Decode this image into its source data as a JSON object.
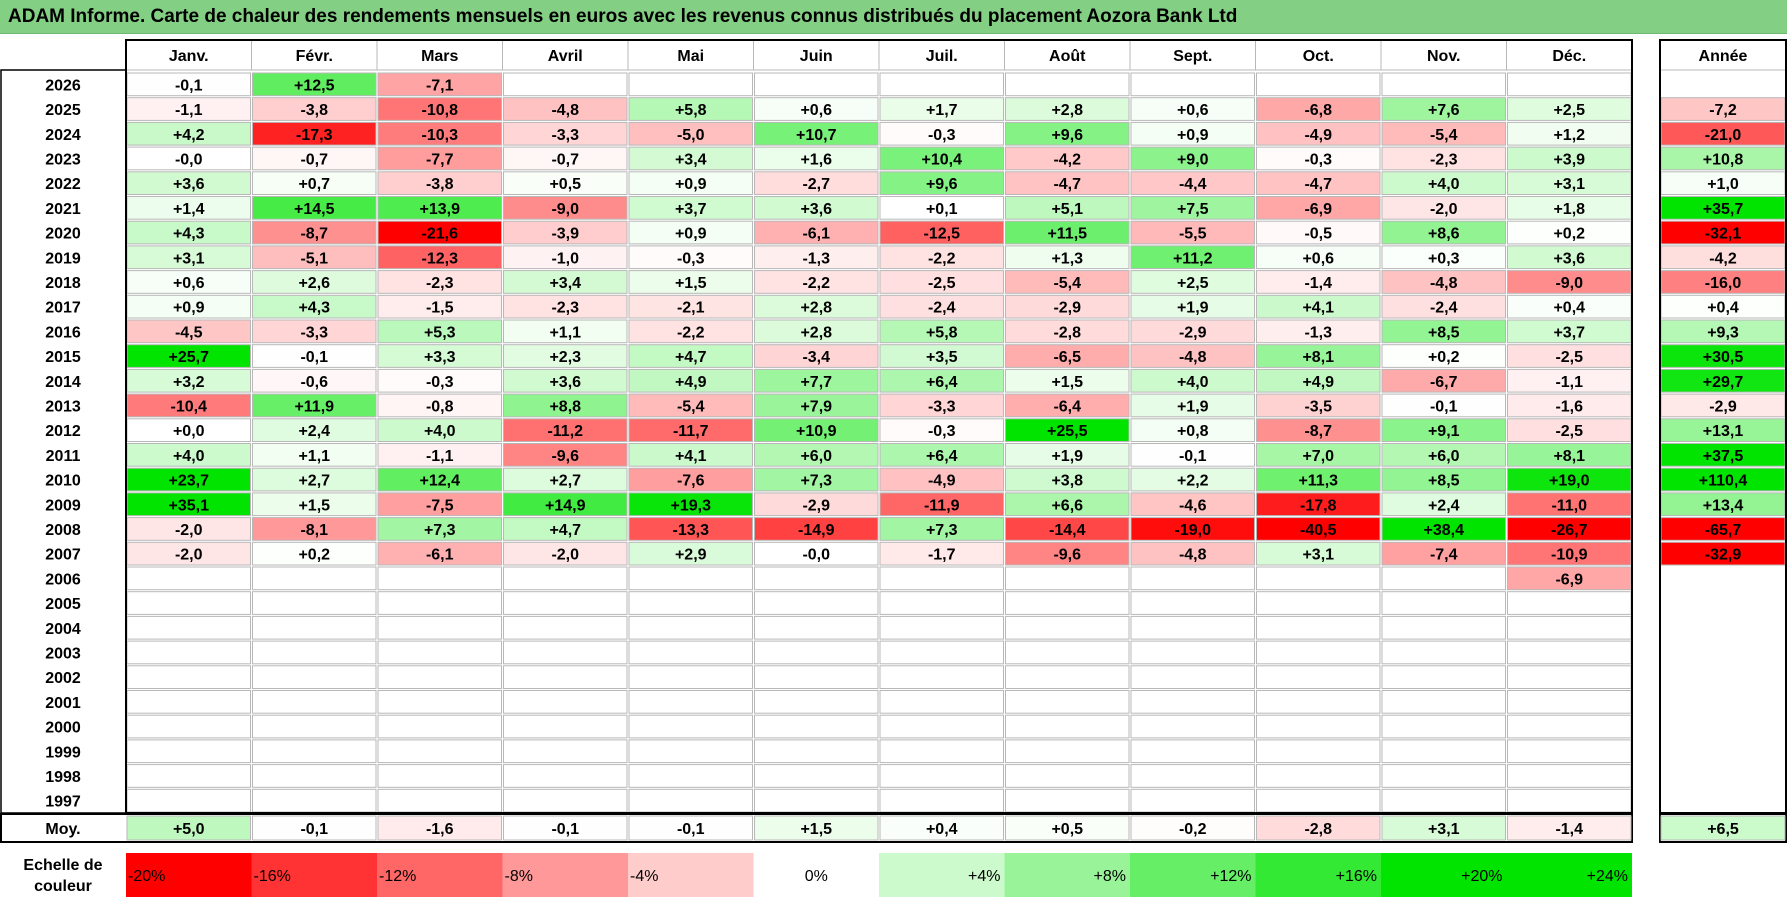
{
  "title": "ADAM Informe. Carte de chaleur des rendements mensuels en euros avec les revenus connus distribués du placement Aozora Bank Ltd",
  "chart_data": {
    "type": "heatmap",
    "months": [
      "Janv.",
      "Févr.",
      "Mars",
      "Avril",
      "Mai",
      "Juin",
      "Juil.",
      "Août",
      "Sept.",
      "Oct.",
      "Nov.",
      "Déc."
    ],
    "year_header": "Année",
    "rows": [
      {
        "year": "2026",
        "values": [
          "-0,1",
          "+12,5",
          "-7,1",
          "",
          "",
          "",
          "",
          "",
          "",
          "",
          "",
          ""
        ],
        "annual": ""
      },
      {
        "year": "2025",
        "values": [
          "-1,1",
          "-3,8",
          "-10,8",
          "-4,8",
          "+5,8",
          "+0,6",
          "+1,7",
          "+2,8",
          "+0,6",
          "-6,8",
          "+7,6",
          "+2,5"
        ],
        "annual": "-7,2"
      },
      {
        "year": "2024",
        "values": [
          "+4,2",
          "-17,3",
          "-10,3",
          "-3,3",
          "-5,0",
          "+10,7",
          "-0,3",
          "+9,6",
          "+0,9",
          "-4,9",
          "-5,4",
          "+1,2"
        ],
        "annual": "-21,0"
      },
      {
        "year": "2023",
        "values": [
          "-0,0",
          "-0,7",
          "-7,7",
          "-0,7",
          "+3,4",
          "+1,6",
          "+10,4",
          "-4,2",
          "+9,0",
          "-0,3",
          "-2,3",
          "+3,9"
        ],
        "annual": "+10,8"
      },
      {
        "year": "2022",
        "values": [
          "+3,6",
          "+0,7",
          "-3,8",
          "+0,5",
          "+0,9",
          "-2,7",
          "+9,6",
          "-4,7",
          "-4,4",
          "-4,7",
          "+4,0",
          "+3,1"
        ],
        "annual": "+1,0"
      },
      {
        "year": "2021",
        "values": [
          "+1,4",
          "+14,5",
          "+13,9",
          "-9,0",
          "+3,7",
          "+3,6",
          "+0,1",
          "+5,1",
          "+7,5",
          "-6,9",
          "-2,0",
          "+1,8"
        ],
        "annual": "+35,7"
      },
      {
        "year": "2020",
        "values": [
          "+4,3",
          "-8,7",
          "-21,6",
          "-3,9",
          "+0,9",
          "-6,1",
          "-12,5",
          "+11,5",
          "-5,5",
          "-0,5",
          "+8,6",
          "+0,2"
        ],
        "annual": "-32,1"
      },
      {
        "year": "2019",
        "values": [
          "+3,1",
          "-5,1",
          "-12,3",
          "-1,0",
          "-0,3",
          "-1,3",
          "-2,2",
          "+1,3",
          "+11,2",
          "+0,6",
          "+0,3",
          "+3,6"
        ],
        "annual": "-4,2"
      },
      {
        "year": "2018",
        "values": [
          "+0,6",
          "+2,6",
          "-2,3",
          "+3,4",
          "+1,5",
          "-2,2",
          "-2,5",
          "-5,4",
          "+2,5",
          "-1,4",
          "-4,8",
          "-9,0"
        ],
        "annual": "-16,0"
      },
      {
        "year": "2017",
        "values": [
          "+0,9",
          "+4,3",
          "-1,5",
          "-2,3",
          "-2,1",
          "+2,8",
          "-2,4",
          "-2,9",
          "+1,9",
          "+4,1",
          "-2,4",
          "+0,4"
        ],
        "annual": "+0,4"
      },
      {
        "year": "2016",
        "values": [
          "-4,5",
          "-3,3",
          "+5,3",
          "+1,1",
          "-2,2",
          "+2,8",
          "+5,8",
          "-2,8",
          "-2,9",
          "-1,3",
          "+8,5",
          "+3,7"
        ],
        "annual": "+9,3"
      },
      {
        "year": "2015",
        "values": [
          "+25,7",
          "-0,1",
          "+3,3",
          "+2,3",
          "+4,7",
          "-3,4",
          "+3,5",
          "-6,5",
          "-4,8",
          "+8,1",
          "+0,2",
          "-2,5"
        ],
        "annual": "+30,5"
      },
      {
        "year": "2014",
        "values": [
          "+3,2",
          "-0,6",
          "-0,3",
          "+3,6",
          "+4,9",
          "+7,7",
          "+6,4",
          "+1,5",
          "+4,0",
          "+4,9",
          "-6,7",
          "-1,1"
        ],
        "annual": "+29,7"
      },
      {
        "year": "2013",
        "values": [
          "-10,4",
          "+11,9",
          "-0,8",
          "+8,8",
          "-5,4",
          "+7,9",
          "-3,3",
          "-6,4",
          "+1,9",
          "-3,5",
          "-0,1",
          "-1,6"
        ],
        "annual": "-2,9"
      },
      {
        "year": "2012",
        "values": [
          "+0,0",
          "+2,4",
          "+4,0",
          "-11,2",
          "-11,7",
          "+10,9",
          "-0,3",
          "+25,5",
          "+0,8",
          "-8,7",
          "+9,1",
          "-2,5"
        ],
        "annual": "+13,1"
      },
      {
        "year": "2011",
        "values": [
          "+4,0",
          "+1,1",
          "-1,1",
          "-9,6",
          "+4,1",
          "+6,0",
          "+6,4",
          "+1,9",
          "-0,1",
          "+7,0",
          "+6,0",
          "+8,1"
        ],
        "annual": "+37,5"
      },
      {
        "year": "2010",
        "values": [
          "+23,7",
          "+2,7",
          "+12,4",
          "+2,7",
          "-7,6",
          "+7,3",
          "-4,9",
          "+3,8",
          "+2,2",
          "+11,3",
          "+8,5",
          "+19,0"
        ],
        "annual": "+110,4"
      },
      {
        "year": "2009",
        "values": [
          "+35,1",
          "+1,5",
          "-7,5",
          "+14,9",
          "+19,3",
          "-2,9",
          "-11,9",
          "+6,6",
          "-4,6",
          "-17,8",
          "+2,4",
          "-11,0"
        ],
        "annual": "+13,4"
      },
      {
        "year": "2008",
        "values": [
          "-2,0",
          "-8,1",
          "+7,3",
          "+4,7",
          "-13,3",
          "-14,9",
          "+7,3",
          "-14,4",
          "-19,0",
          "-40,5",
          "+38,4",
          "-26,7"
        ],
        "annual": "-65,7"
      },
      {
        "year": "2007",
        "values": [
          "-2,0",
          "+0,2",
          "-6,1",
          "-2,0",
          "+2,9",
          "-0,0",
          "-1,7",
          "-9,6",
          "-4,8",
          "+3,1",
          "-7,4",
          "-10,9"
        ],
        "annual": "-32,9"
      },
      {
        "year": "2006",
        "values": [
          "",
          "",
          "",
          "",
          "",
          "",
          "",
          "",
          "",
          "",
          "",
          "-6,9"
        ],
        "annual": ""
      },
      {
        "year": "2005",
        "values": [
          "",
          "",
          "",
          "",
          "",
          "",
          "",
          "",
          "",
          "",
          "",
          ""
        ],
        "annual": ""
      },
      {
        "year": "2004",
        "values": [
          "",
          "",
          "",
          "",
          "",
          "",
          "",
          "",
          "",
          "",
          "",
          ""
        ],
        "annual": ""
      },
      {
        "year": "2003",
        "values": [
          "",
          "",
          "",
          "",
          "",
          "",
          "",
          "",
          "",
          "",
          "",
          ""
        ],
        "annual": ""
      },
      {
        "year": "2002",
        "values": [
          "",
          "",
          "",
          "",
          "",
          "",
          "",
          "",
          "",
          "",
          "",
          ""
        ],
        "annual": ""
      },
      {
        "year": "2001",
        "values": [
          "",
          "",
          "",
          "",
          "",
          "",
          "",
          "",
          "",
          "",
          "",
          ""
        ],
        "annual": ""
      },
      {
        "year": "2000",
        "values": [
          "",
          "",
          "",
          "",
          "",
          "",
          "",
          "",
          "",
          "",
          "",
          ""
        ],
        "annual": ""
      },
      {
        "year": "1999",
        "values": [
          "",
          "",
          "",
          "",
          "",
          "",
          "",
          "",
          "",
          "",
          "",
          ""
        ],
        "annual": ""
      },
      {
        "year": "1998",
        "values": [
          "",
          "",
          "",
          "",
          "",
          "",
          "",
          "",
          "",
          "",
          "",
          ""
        ],
        "annual": ""
      },
      {
        "year": "1997",
        "values": [
          "",
          "",
          "",
          "",
          "",
          "",
          "",
          "",
          "",
          "",
          "",
          ""
        ],
        "annual": ""
      }
    ],
    "average": {
      "label": "Moy.",
      "values": [
        "+5,0",
        "-0,1",
        "-1,6",
        "-0,1",
        "-0,1",
        "+1,5",
        "+0,4",
        "+0,5",
        "-0,2",
        "-2,8",
        "+3,1",
        "-1,4"
      ],
      "annual": "+6,5"
    },
    "color_scale": {
      "label_line1": "Echelle de",
      "label_line2": "couleur",
      "stops": [
        "-20%",
        "-16%",
        "-12%",
        "-8%",
        "-4%",
        "0%",
        "+4%",
        "+8%",
        "+12%",
        "+16%",
        "+20%",
        "+24%"
      ],
      "stop_values": [
        -20,
        -16,
        -12,
        -8,
        -4,
        0,
        4,
        8,
        12,
        16,
        20,
        24
      ]
    },
    "colors": {
      "negative_max": "#ff0000",
      "positive_max": "#00e400",
      "neutral": "#ffffff",
      "grid": "#b8b8b8",
      "frame": "#000000",
      "title_bg": "#83cf83"
    }
  }
}
